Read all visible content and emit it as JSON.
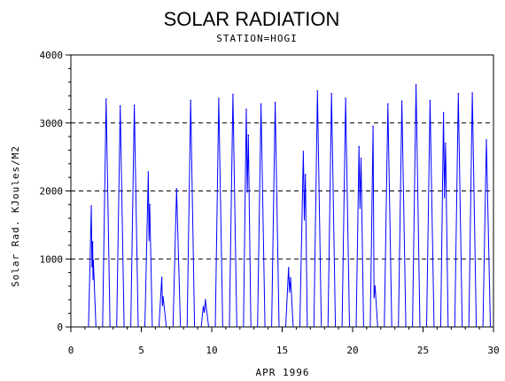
{
  "chart_data": {
    "type": "line",
    "title": "SOLAR RADIATION",
    "subtitle": "STATION=HOGI",
    "xlabel": "APR 1996",
    "ylabel": "Solar Rad. KJoules/M2",
    "xlim": [
      0,
      30
    ],
    "ylim": [
      0,
      4000
    ],
    "x_ticks": [
      0,
      5,
      10,
      15,
      20,
      25,
      30
    ],
    "y_ticks": [
      0,
      1000,
      2000,
      3000,
      4000
    ],
    "grid": "horizontal dashed at y ticks",
    "line_color": "#0000ff",
    "series": [
      {
        "daily_peaks": [
          {
            "day": 1,
            "peaks": [
              [
                0.45,
                1780
              ],
              [
                0.55,
                1250
              ],
              [
                0.6,
                980
              ]
            ]
          },
          {
            "day": 2,
            "peaks": [
              [
                0.5,
                3350
              ]
            ]
          },
          {
            "day": 3,
            "peaks": [
              [
                0.5,
                3250
              ]
            ]
          },
          {
            "day": 4,
            "peaks": [
              [
                0.5,
                3260
              ]
            ]
          },
          {
            "day": 5,
            "peaks": [
              [
                0.5,
                2280
              ],
              [
                0.6,
                1800
              ]
            ]
          },
          {
            "day": 6,
            "peaks": [
              [
                0.45,
                730
              ],
              [
                0.55,
                440
              ]
            ]
          },
          {
            "day": 7,
            "peaks": [
              [
                0.5,
                2030
              ]
            ]
          },
          {
            "day": 8,
            "peaks": [
              [
                0.5,
                3330
              ]
            ]
          },
          {
            "day": 9,
            "peaks": [
              [
                0.4,
                300
              ],
              [
                0.55,
                400
              ]
            ]
          },
          {
            "day": 10,
            "peaks": [
              [
                0.5,
                3360
              ]
            ]
          },
          {
            "day": 11,
            "peaks": [
              [
                0.5,
                3420
              ]
            ]
          },
          {
            "day": 12,
            "peaks": [
              [
                0.45,
                3200
              ],
              [
                0.6,
                2820
              ]
            ]
          },
          {
            "day": 13,
            "peaks": [
              [
                0.5,
                3280
              ]
            ]
          },
          {
            "day": 14,
            "peaks": [
              [
                0.5,
                3300
              ]
            ]
          },
          {
            "day": 15,
            "peaks": [
              [
                0.45,
                870
              ],
              [
                0.6,
                720
              ]
            ]
          },
          {
            "day": 16,
            "peaks": [
              [
                0.5,
                2580
              ],
              [
                0.65,
                2240
              ]
            ]
          },
          {
            "day": 17,
            "peaks": [
              [
                0.5,
                3470
              ]
            ]
          },
          {
            "day": 18,
            "peaks": [
              [
                0.5,
                3430
              ]
            ]
          },
          {
            "day": 19,
            "peaks": [
              [
                0.5,
                3360
              ]
            ]
          },
          {
            "day": 20,
            "peaks": [
              [
                0.45,
                2650
              ],
              [
                0.6,
                2480
              ]
            ]
          },
          {
            "day": 21,
            "peaks": [
              [
                0.45,
                2950
              ],
              [
                0.6,
                600
              ]
            ]
          },
          {
            "day": 22,
            "peaks": [
              [
                0.5,
                3280
              ]
            ]
          },
          {
            "day": 23,
            "peaks": [
              [
                0.5,
                3320
              ]
            ]
          },
          {
            "day": 24,
            "peaks": [
              [
                0.5,
                3560
              ]
            ]
          },
          {
            "day": 25,
            "peaks": [
              [
                0.5,
                3330
              ]
            ]
          },
          {
            "day": 26,
            "peaks": [
              [
                0.45,
                3150
              ],
              [
                0.6,
                2700
              ]
            ]
          },
          {
            "day": 27,
            "peaks": [
              [
                0.5,
                3430
              ]
            ]
          },
          {
            "day": 28,
            "peaks": [
              [
                0.5,
                3440
              ]
            ]
          },
          {
            "day": 29,
            "peaks": [
              [
                0.5,
                2750
              ]
            ]
          }
        ]
      }
    ]
  }
}
